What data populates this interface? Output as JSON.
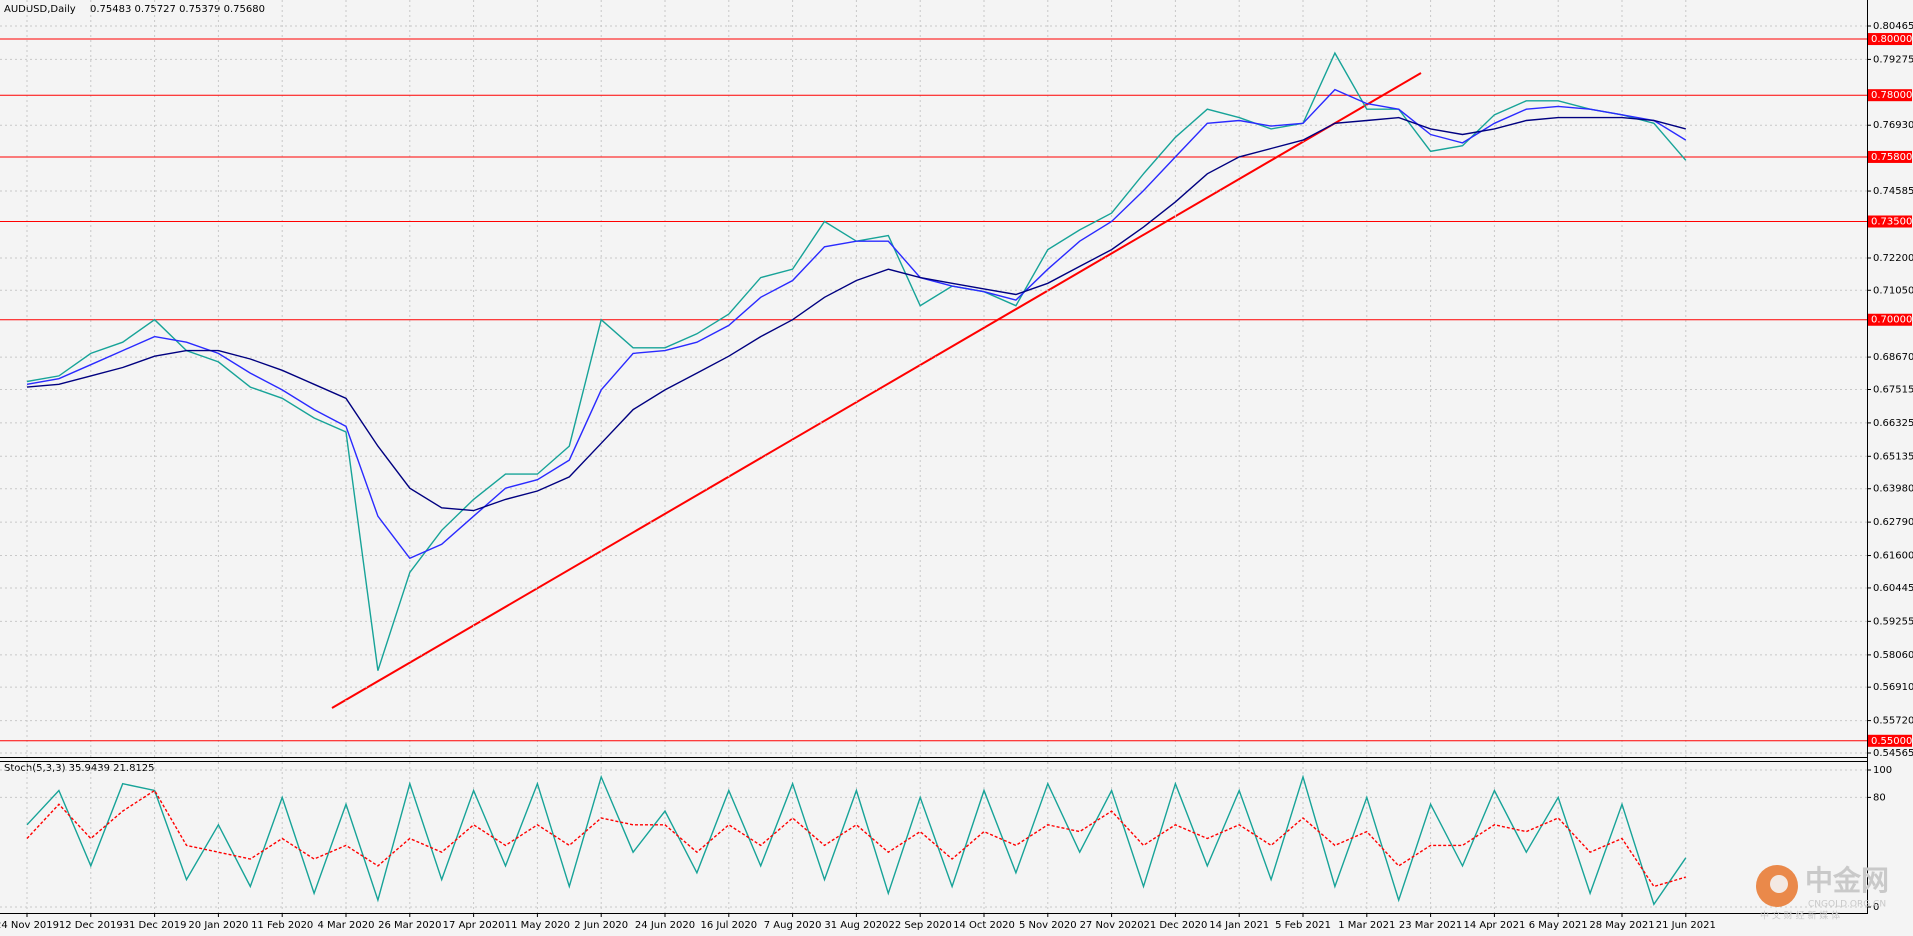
{
  "header": {
    "symbol": "AUDUSD,Daily",
    "ohlc": "0.75483 0.75727 0.75379 0.75680"
  },
  "chart_data": [
    {
      "type": "line",
      "categories": [
        "24 Nov 2019",
        null,
        "12 Dec 2019",
        null,
        "31 Dec 2019",
        null,
        "20 Jan 2020",
        null,
        "11 Feb 2020",
        null,
        "4 Mar 2020",
        null,
        "26 Mar 2020",
        null,
        "17 Apr 2020",
        null,
        "11 May 2020",
        null,
        "2 Jun 2020",
        null,
        "24 Jun 2020",
        null,
        "16 Jul 2020",
        null,
        "7 Aug 2020",
        null,
        "31 Aug 2020",
        null,
        "22 Sep 2020",
        null,
        "14 Oct 2020",
        null,
        "5 Nov 2020",
        null,
        "27 Nov 2020",
        null,
        "21 Dec 2020",
        null,
        "14 Jan 2021",
        null,
        "5 Feb 2021",
        null,
        "1 Mar 2021",
        null,
        "23 Mar 2021",
        null,
        "14 Apr 2021",
        null,
        "6 May 2021",
        null,
        "28 May 2021",
        null,
        "21 Jun 2021"
      ],
      "series": [
        {
          "color": "#17a398",
          "values": [
            0.678,
            0.68,
            0.688,
            0.692,
            0.7,
            0.689,
            0.685,
            0.676,
            0.672,
            0.665,
            0.66,
            0.575,
            0.61,
            0.625,
            0.636,
            0.645,
            0.645,
            0.655,
            0.7,
            0.69,
            0.69,
            0.695,
            0.702,
            0.715,
            0.718,
            0.735,
            0.728,
            0.73,
            0.705,
            0.712,
            0.71,
            0.705,
            0.725,
            0.732,
            0.738,
            0.752,
            0.765,
            0.775,
            0.772,
            0.768,
            0.77,
            0.795,
            0.775,
            0.775,
            0.76,
            0.762,
            0.773,
            0.778,
            0.778,
            0.775,
            0.773,
            0.77,
            0.7568
          ]
        },
        {
          "color": "#2a2aff",
          "values": [
            0.677,
            0.679,
            0.684,
            0.689,
            0.694,
            0.692,
            0.688,
            0.681,
            0.675,
            0.668,
            0.662,
            0.63,
            0.615,
            0.62,
            0.63,
            0.64,
            0.643,
            0.65,
            0.675,
            0.688,
            0.689,
            0.692,
            0.698,
            0.708,
            0.714,
            0.726,
            0.728,
            0.728,
            0.715,
            0.712,
            0.71,
            0.707,
            0.718,
            0.728,
            0.735,
            0.746,
            0.758,
            0.77,
            0.771,
            0.769,
            0.77,
            0.782,
            0.777,
            0.775,
            0.766,
            0.763,
            0.77,
            0.775,
            0.776,
            0.775,
            0.773,
            0.771,
            0.764
          ]
        },
        {
          "color": "#000080",
          "values": [
            0.676,
            0.677,
            0.68,
            0.683,
            0.687,
            0.689,
            0.689,
            0.686,
            0.682,
            0.677,
            0.672,
            0.655,
            0.64,
            0.633,
            0.632,
            0.636,
            0.639,
            0.644,
            0.656,
            0.668,
            0.675,
            0.681,
            0.687,
            0.694,
            0.7,
            0.708,
            0.714,
            0.718,
            0.715,
            0.713,
            0.711,
            0.709,
            0.713,
            0.719,
            0.725,
            0.733,
            0.742,
            0.752,
            0.758,
            0.761,
            0.764,
            0.77,
            0.771,
            0.772,
            0.768,
            0.766,
            0.768,
            0.771,
            0.772,
            0.772,
            0.772,
            0.771,
            0.768
          ]
        }
      ],
      "ylim": [
        0.54565,
        0.80465
      ],
      "yticks": [
        0.80465,
        0.79275,
        {
          "value": 0.7693,
          "label": "0.76930"
        },
        0.74585,
        {
          "value": 0.722,
          "label": "0.72200"
        },
        {
          "value": 0.7105,
          "label": "0.71050"
        },
        {
          "value": 0.6867,
          "label": "0.68670"
        },
        0.67515,
        0.66325,
        0.65135,
        {
          "value": 0.6398,
          "label": "0.63980"
        },
        {
          "value": 0.6279,
          "label": "0.62790"
        },
        {
          "value": 0.616,
          "label": "0.61600"
        },
        0.60445,
        0.59255,
        {
          "value": 0.5806,
          "label": "0.58060"
        },
        {
          "value": 0.5691,
          "label": "0.56910"
        },
        {
          "value": 0.5572,
          "label": "0.55720"
        },
        0.54565
      ],
      "levels": [
        {
          "value": 0.8,
          "label": "0.80000"
        },
        {
          "value": 0.78,
          "label": "0.78000"
        },
        {
          "value": 0.758,
          "label": "0.75800"
        },
        {
          "value": 0.735,
          "label": "0.73500"
        },
        {
          "value": 0.7,
          "label": "0.70000"
        },
        {
          "value": 0.55,
          "label": "0.55000"
        }
      ],
      "level_color": "#ff0000",
      "grid": true
    },
    {
      "type": "line",
      "title": "Stoch(5,3,3) 35.9439 21.8125",
      "series": [
        {
          "color": "#17a398",
          "values": [
            60,
            85,
            30,
            90,
            85,
            20,
            60,
            15,
            80,
            10,
            75,
            5,
            90,
            20,
            85,
            30,
            90,
            15,
            95,
            40,
            70,
            25,
            85,
            30,
            90,
            20,
            85,
            10,
            80,
            15,
            85,
            25,
            90,
            40,
            85,
            15,
            90,
            30,
            85,
            20,
            95,
            15,
            80,
            5,
            75,
            30,
            85,
            40,
            80,
            10,
            75,
            2,
            35.9439
          ]
        },
        {
          "color": "#ff0000",
          "dashed": true,
          "values": [
            50,
            75,
            50,
            70,
            85,
            45,
            40,
            35,
            50,
            35,
            45,
            30,
            50,
            40,
            60,
            45,
            60,
            45,
            65,
            60,
            60,
            40,
            60,
            45,
            65,
            45,
            60,
            40,
            55,
            35,
            55,
            45,
            60,
            55,
            70,
            45,
            60,
            50,
            60,
            45,
            65,
            45,
            55,
            30,
            45,
            45,
            60,
            55,
            65,
            40,
            50,
            15,
            21.8125
          ]
        }
      ],
      "ylim": [
        0,
        100
      ],
      "yticks": [
        100,
        80,
        0
      ],
      "grid": true
    }
  ],
  "watermark": {
    "brand": "中金网",
    "site": "CNGOLD.ORG.CN",
    "tagline": "中 文 财 经 新 媒 体"
  }
}
